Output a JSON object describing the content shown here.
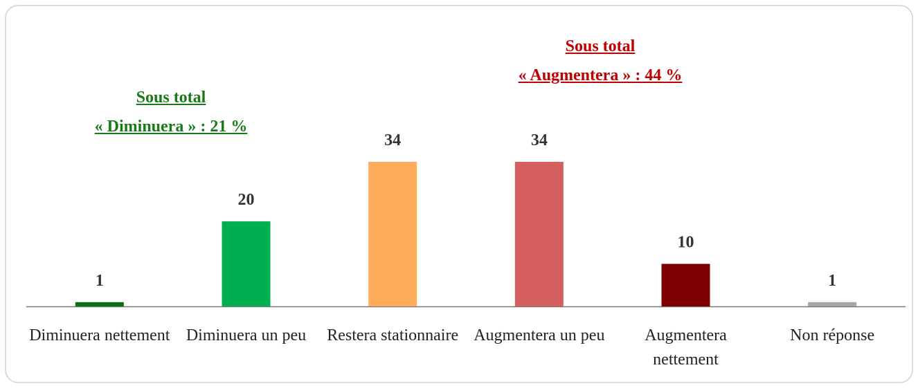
{
  "chart_data": {
    "type": "bar",
    "categories": [
      "Diminuera nettement",
      "Diminuera un peu",
      "Restera stationnaire",
      "Augmentera un peu",
      "Augmentera nettement",
      "Non réponse"
    ],
    "values": [
      1,
      20,
      34,
      34,
      10,
      1
    ],
    "colors": [
      "#0a6e1a",
      "#00b050",
      "#ffad5c",
      "#d66060",
      "#7f0000",
      "#a6a6a6"
    ],
    "annotations": [
      {
        "lines": [
          "Sous total",
          "« Diminuera » :  21 %"
        ],
        "color": "#1a7a1a"
      },
      {
        "lines": [
          "Sous total",
          "« Augmentera » : 44 %"
        ],
        "color": "#c00000"
      }
    ]
  }
}
